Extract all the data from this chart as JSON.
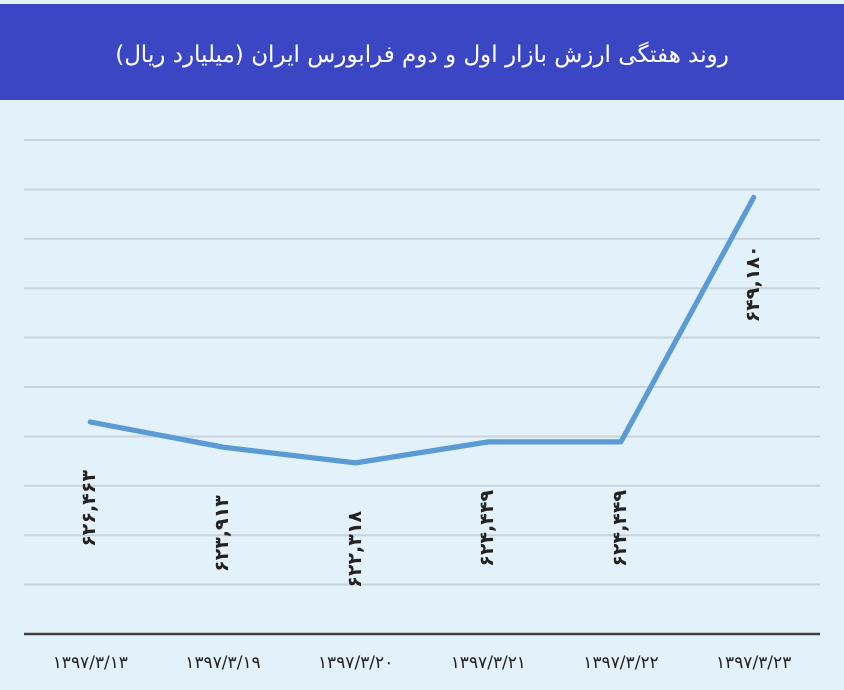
{
  "chart_data": {
    "type": "line",
    "title": "روند هفتگی ارزش بازار اول و دوم فرابورس  ایران (میلیارد ریال)",
    "categories": [
      "۱۳۹۷/۳/۱۳",
      "۱۳۹۷/۳/۱۹",
      "۱۳۹۷/۳/۲۰",
      "۱۳۹۷/۳/۲۱",
      "۱۳۹۷/۳/۲۲",
      "۱۳۹۷/۳/۲۳"
    ],
    "series": [
      {
        "color": "#5b9bd5",
        "values": [
          626463,
          623913,
          622318,
          624449,
          624449,
          649180
        ],
        "value_labels": [
          "۶۲۶,۴۶۳",
          "۶۲۳,۹۱۳",
          "۶۲۲,۳۱۸",
          "۶۲۴,۴۴۹",
          "۶۲۴,۴۴۹",
          "۶۴۹,۱۸۰"
        ]
      }
    ],
    "ylim": [
      605000,
      655000
    ],
    "yticks": [
      {
        "value": 610000,
        "label": null
      },
      {
        "value": 615000,
        "label": null
      },
      {
        "value": 620000,
        "label": null
      },
      {
        "value": 625000,
        "label": null
      },
      {
        "value": 630000,
        "label": null
      },
      {
        "value": 635000,
        "label": null
      },
      {
        "value": 640000,
        "label": null
      },
      {
        "value": 645000,
        "label": null
      },
      {
        "value": 650000,
        "label": null
      },
      {
        "value": 655000,
        "label": null
      }
    ],
    "grid": "y",
    "marker": "none",
    "line_style": "solid"
  }
}
